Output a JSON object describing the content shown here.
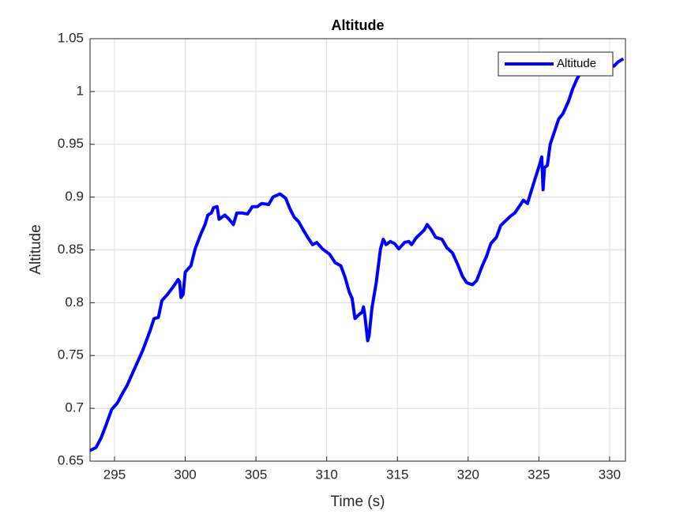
{
  "chart_data": {
    "type": "line",
    "title": "Altitude",
    "x_label": "Time (s)",
    "y_label": "Altitude",
    "x": [
      293.27,
      293.7,
      294.05,
      294.4,
      294.8,
      295.2,
      295.6,
      295.9,
      296.4,
      297.0,
      297.5,
      297.8,
      298.1,
      298.35,
      298.75,
      299.2,
      299.5,
      299.6,
      299.7,
      299.85,
      300.0,
      300.4,
      300.7,
      301.1,
      301.4,
      301.6,
      301.85,
      302.0,
      302.25,
      302.4,
      302.8,
      303.1,
      303.4,
      303.65,
      304.0,
      304.4,
      304.75,
      305.1,
      305.4,
      305.9,
      306.2,
      306.7,
      307.1,
      307.4,
      307.7,
      308.0,
      308.3,
      308.7,
      309.0,
      309.3,
      309.7,
      310.2,
      310.6,
      311.0,
      311.3,
      311.6,
      311.8,
      312.0,
      312.3,
      312.5,
      312.6,
      312.7,
      312.9,
      313.0,
      313.2,
      313.5,
      313.8,
      314.0,
      314.2,
      314.5,
      314.8,
      315.1,
      315.5,
      315.8,
      316.0,
      316.3,
      316.6,
      316.9,
      317.1,
      317.4,
      317.7,
      318.15,
      318.5,
      318.9,
      319.3,
      319.6,
      319.9,
      320.3,
      320.6,
      321.0,
      321.3,
      321.6,
      322.0,
      322.3,
      322.6,
      323.0,
      323.3,
      323.6,
      323.9,
      324.2,
      324.4,
      324.7,
      325.1,
      325.2,
      325.3,
      325.4,
      325.6,
      325.8,
      326.1,
      326.4,
      326.7,
      327.1,
      327.4,
      327.7,
      328.1,
      328.4,
      328.7,
      329.2,
      329.6,
      329.97,
      330.3,
      330.6,
      330.97
    ],
    "series": [
      {
        "name": "Altitude",
        "color": "#0000ff",
        "values": [
          0.66,
          0.663,
          0.672,
          0.684,
          0.699,
          0.705,
          0.715,
          0.722,
          0.737,
          0.755,
          0.773,
          0.785,
          0.786,
          0.802,
          0.808,
          0.816,
          0.822,
          0.82,
          0.805,
          0.808,
          0.829,
          0.835,
          0.851,
          0.865,
          0.874,
          0.883,
          0.885,
          0.89,
          0.891,
          0.879,
          0.883,
          0.879,
          0.874,
          0.885,
          0.885,
          0.884,
          0.891,
          0.891,
          0.894,
          0.893,
          0.9,
          0.903,
          0.899,
          0.889,
          0.881,
          0.877,
          0.87,
          0.861,
          0.855,
          0.857,
          0.851,
          0.846,
          0.838,
          0.835,
          0.824,
          0.81,
          0.804,
          0.785,
          0.789,
          0.791,
          0.796,
          0.788,
          0.764,
          0.769,
          0.795,
          0.819,
          0.851,
          0.86,
          0.855,
          0.858,
          0.856,
          0.851,
          0.857,
          0.858,
          0.855,
          0.861,
          0.865,
          0.869,
          0.874,
          0.869,
          0.862,
          0.86,
          0.852,
          0.847,
          0.835,
          0.825,
          0.819,
          0.817,
          0.821,
          0.835,
          0.844,
          0.856,
          0.862,
          0.873,
          0.877,
          0.882,
          0.885,
          0.891,
          0.897,
          0.894,
          0.903,
          0.916,
          0.933,
          0.938,
          0.907,
          0.928,
          0.93,
          0.95,
          0.962,
          0.974,
          0.979,
          0.991,
          1.003,
          1.012,
          1.021,
          1.022,
          1.025,
          1.028,
          1.03,
          1.026,
          1.024,
          1.028,
          1.031
        ]
      }
    ],
    "xlim": [
      293.27,
      331.12
    ],
    "ylim": [
      0.65,
      1.05
    ],
    "xticks": [
      295,
      300,
      305,
      310,
      315,
      320,
      325,
      330
    ],
    "yticks": [
      0.65,
      0.7,
      0.75,
      0.8,
      0.85,
      0.9,
      0.95,
      1,
      1.05
    ],
    "grid": true,
    "legend": "northeast"
  }
}
